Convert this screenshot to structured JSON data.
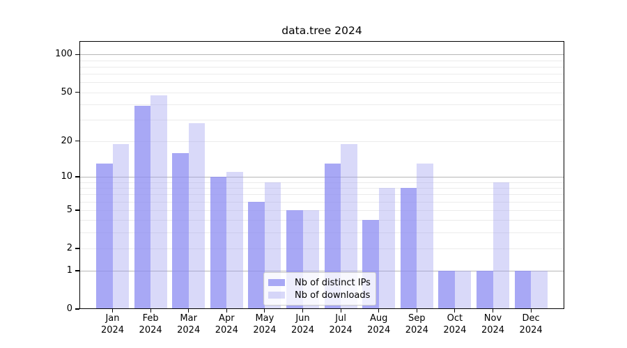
{
  "chart_data": {
    "type": "bar",
    "title": "data.tree 2024",
    "categories": [
      "Jan 2024",
      "Feb 2024",
      "Mar 2024",
      "Apr 2024",
      "May 2024",
      "Jun 2024",
      "Jul 2024",
      "Aug 2024",
      "Sep 2024",
      "Oct 2024",
      "Nov 2024",
      "Dec 2024"
    ],
    "series": [
      {
        "name": "Nb of distinct IPs",
        "key": "distinct-ips",
        "color": "#8c8cf2c2",
        "values": [
          13,
          39,
          16,
          10,
          6,
          5,
          13,
          4,
          8,
          1,
          1,
          1
        ]
      },
      {
        "name": "Nb of downloads",
        "key": "downloads",
        "color": "#a0a0ef66",
        "values": [
          19,
          47,
          28,
          11,
          9,
          5,
          19,
          8,
          13,
          1,
          9,
          1
        ]
      }
    ],
    "xlabel": "",
    "ylabel": "",
    "yscale": "log1p",
    "ylim": [
      0,
      128
    ],
    "yticks": [
      0,
      1,
      2,
      5,
      10,
      20,
      50,
      100
    ],
    "gridlines_major": [
      1,
      10,
      100
    ],
    "gridlines_minor": [
      2,
      3,
      4,
      5,
      6,
      7,
      8,
      9,
      20,
      30,
      40,
      50,
      60,
      70,
      80,
      90
    ],
    "grid": true,
    "legend_position": "bottom-center"
  },
  "colors": {
    "grid_minor": "#ebebeb",
    "grid_major": "#b5b5b5",
    "axis": "#000000",
    "legend_border": "#cccccc"
  }
}
